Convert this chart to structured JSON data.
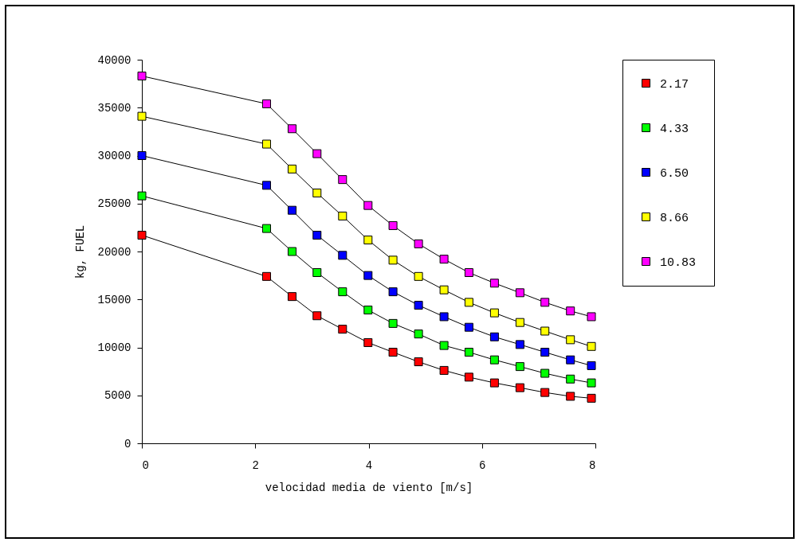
{
  "chart_data": {
    "type": "line",
    "xlabel": "velocidad media de viento [m/s]",
    "ylabel": "kg, FUEL",
    "x": [
      0,
      2.2,
      2.65,
      3.09,
      3.54,
      3.99,
      4.43,
      4.88,
      5.33,
      5.77,
      6.22,
      6.67,
      7.11,
      7.56,
      7.93
    ],
    "xlim": [
      0,
      8
    ],
    "xticks": [
      0,
      2,
      4,
      6,
      8
    ],
    "ylim": [
      0,
      40000
    ],
    "yticks": [
      0,
      5000,
      10000,
      15000,
      20000,
      25000,
      30000,
      35000,
      40000
    ],
    "grid": false,
    "legend": "right",
    "marker": "square",
    "line_style": "solid",
    "series": [
      {
        "name": "2.17",
        "color": "#ff0000",
        "values": [
          21700,
          17400,
          15300,
          13300,
          11900,
          10500,
          9500,
          8500,
          7600,
          6900,
          6300,
          5800,
          5300,
          4900,
          4700
        ]
      },
      {
        "name": "4.33",
        "color": "#00ff00",
        "values": [
          25800,
          22400,
          20000,
          17800,
          15800,
          13900,
          12500,
          11400,
          10200,
          9500,
          8700,
          8000,
          7300,
          6700,
          6300
        ]
      },
      {
        "name": "6.50",
        "color": "#0000ff",
        "values": [
          30000,
          26900,
          24300,
          21700,
          19600,
          17500,
          15800,
          14400,
          13200,
          12100,
          11100,
          10300,
          9500,
          8700,
          8100
        ]
      },
      {
        "name": "8.66",
        "color": "#ffff00",
        "values": [
          34100,
          31200,
          28600,
          26100,
          23700,
          21200,
          19100,
          17400,
          16000,
          14700,
          13600,
          12600,
          11700,
          10800,
          10100
        ]
      },
      {
        "name": "10.83",
        "color": "#ff00ff",
        "values": [
          38300,
          35400,
          32800,
          30200,
          27500,
          24800,
          22700,
          20800,
          19200,
          17800,
          16700,
          15700,
          14700,
          13800,
          13200
        ]
      }
    ]
  }
}
